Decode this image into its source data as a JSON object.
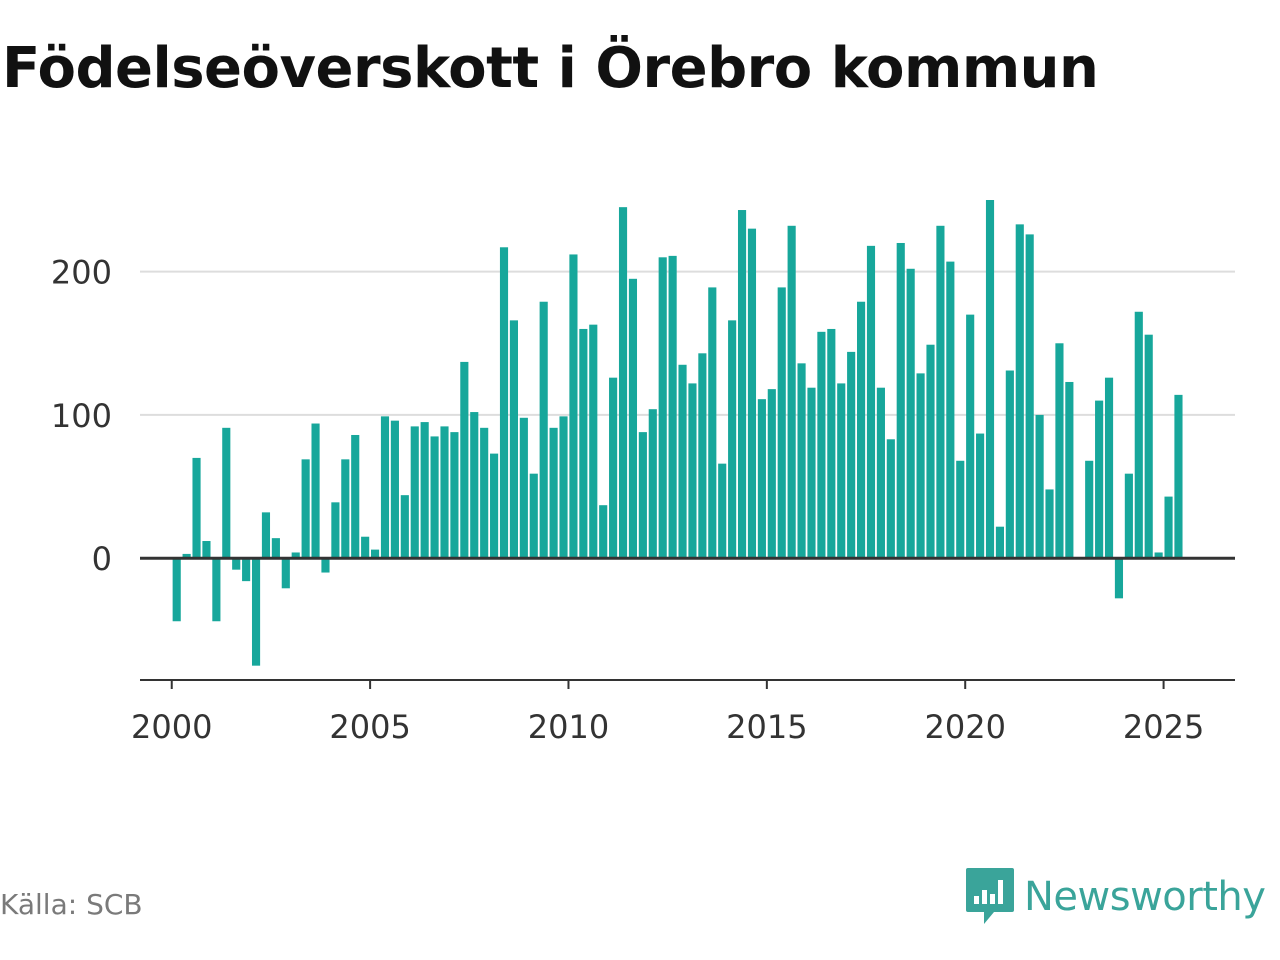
{
  "title": "Födelseöverskott i Örebro kommun",
  "source": "Källa: SCB",
  "brand": "Newsworthy",
  "colors": {
    "bar": "#17a79b",
    "brand": "#3aa49a",
    "grid": "#dddddd",
    "axis": "#333333"
  },
  "chart_data": {
    "type": "bar",
    "xlabel": "",
    "ylabel": "",
    "ylim": [
      -85,
      250
    ],
    "xlim": [
      1999.2,
      2026.8
    ],
    "yticks": [
      0,
      100,
      200
    ],
    "xticks": [
      2000,
      2005,
      2010,
      2015,
      2020,
      2025
    ],
    "grid": true,
    "points": [
      {
        "x": "2000 Q1",
        "y": -44
      },
      {
        "x": "2000 Q2",
        "y": 3
      },
      {
        "x": "2000 Q3",
        "y": 70
      },
      {
        "x": "2000 Q4",
        "y": 12
      },
      {
        "x": "2001 Q1",
        "y": -44
      },
      {
        "x": "2001 Q2",
        "y": 91
      },
      {
        "x": "2001 Q3",
        "y": -8
      },
      {
        "x": "2001 Q4",
        "y": -16
      },
      {
        "x": "2002 Q1",
        "y": -75
      },
      {
        "x": "2002 Q2",
        "y": 32
      },
      {
        "x": "2002 Q3",
        "y": 14
      },
      {
        "x": "2002 Q4",
        "y": -21
      },
      {
        "x": "2003 Q1",
        "y": 4
      },
      {
        "x": "2003 Q2",
        "y": 69
      },
      {
        "x": "2003 Q3",
        "y": 94
      },
      {
        "x": "2003 Q4",
        "y": -10
      },
      {
        "x": "2004 Q1",
        "y": 39
      },
      {
        "x": "2004 Q2",
        "y": 69
      },
      {
        "x": "2004 Q3",
        "y": 86
      },
      {
        "x": "2004 Q4",
        "y": 15
      },
      {
        "x": "2005 Q1",
        "y": 6
      },
      {
        "x": "2005 Q2",
        "y": 99
      },
      {
        "x": "2005 Q3",
        "y": 96
      },
      {
        "x": "2005 Q4",
        "y": 44
      },
      {
        "x": "2006 Q1",
        "y": 92
      },
      {
        "x": "2006 Q2",
        "y": 95
      },
      {
        "x": "2006 Q3",
        "y": 85
      },
      {
        "x": "2006 Q4",
        "y": 92
      },
      {
        "x": "2007 Q1",
        "y": 88
      },
      {
        "x": "2007 Q2",
        "y": 137
      },
      {
        "x": "2007 Q3",
        "y": 102
      },
      {
        "x": "2007 Q4",
        "y": 91
      },
      {
        "x": "2008 Q1",
        "y": 73
      },
      {
        "x": "2008 Q2",
        "y": 217
      },
      {
        "x": "2008 Q3",
        "y": 166
      },
      {
        "x": "2008 Q4",
        "y": 98
      },
      {
        "x": "2009 Q1",
        "y": 59
      },
      {
        "x": "2009 Q2",
        "y": 179
      },
      {
        "x": "2009 Q3",
        "y": 91
      },
      {
        "x": "2009 Q4",
        "y": 99
      },
      {
        "x": "2010 Q1",
        "y": 212
      },
      {
        "x": "2010 Q2",
        "y": 160
      },
      {
        "x": "2010 Q3",
        "y": 163
      },
      {
        "x": "2010 Q4",
        "y": 37
      },
      {
        "x": "2011 Q1",
        "y": 126
      },
      {
        "x": "2011 Q2",
        "y": 245
      },
      {
        "x": "2011 Q3",
        "y": 195
      },
      {
        "x": "2011 Q4",
        "y": 88
      },
      {
        "x": "2012 Q1",
        "y": 104
      },
      {
        "x": "2012 Q2",
        "y": 210
      },
      {
        "x": "2012 Q3",
        "y": 211
      },
      {
        "x": "2012 Q4",
        "y": 135
      },
      {
        "x": "2013 Q1",
        "y": 122
      },
      {
        "x": "2013 Q2",
        "y": 143
      },
      {
        "x": "2013 Q3",
        "y": 189
      },
      {
        "x": "2013 Q4",
        "y": 66
      },
      {
        "x": "2014 Q1",
        "y": 166
      },
      {
        "x": "2014 Q2",
        "y": 243
      },
      {
        "x": "2014 Q3",
        "y": 230
      },
      {
        "x": "2014 Q4",
        "y": 111
      },
      {
        "x": "2015 Q1",
        "y": 118
      },
      {
        "x": "2015 Q2",
        "y": 189
      },
      {
        "x": "2015 Q3",
        "y": 232
      },
      {
        "x": "2015 Q4",
        "y": 136
      },
      {
        "x": "2016 Q1",
        "y": 119
      },
      {
        "x": "2016 Q2",
        "y": 158
      },
      {
        "x": "2016 Q3",
        "y": 160
      },
      {
        "x": "2016 Q4",
        "y": 122
      },
      {
        "x": "2017 Q1",
        "y": 144
      },
      {
        "x": "2017 Q2",
        "y": 179
      },
      {
        "x": "2017 Q3",
        "y": 218
      },
      {
        "x": "2017 Q4",
        "y": 119
      },
      {
        "x": "2018 Q1",
        "y": 83
      },
      {
        "x": "2018 Q2",
        "y": 220
      },
      {
        "x": "2018 Q3",
        "y": 202
      },
      {
        "x": "2018 Q4",
        "y": 129
      },
      {
        "x": "2019 Q1",
        "y": 149
      },
      {
        "x": "2019 Q2",
        "y": 232
      },
      {
        "x": "2019 Q3",
        "y": 207
      },
      {
        "x": "2019 Q4",
        "y": 68
      },
      {
        "x": "2020 Q1",
        "y": 170
      },
      {
        "x": "2020 Q2",
        "y": 87
      },
      {
        "x": "2020 Q3",
        "y": 250
      },
      {
        "x": "2020 Q4",
        "y": 22
      },
      {
        "x": "2021 Q1",
        "y": 131
      },
      {
        "x": "2021 Q2",
        "y": 233
      },
      {
        "x": "2021 Q3",
        "y": 226
      },
      {
        "x": "2021 Q4",
        "y": 100
      },
      {
        "x": "2022 Q1",
        "y": 48
      },
      {
        "x": "2022 Q2",
        "y": 150
      },
      {
        "x": "2022 Q3",
        "y": 123
      },
      {
        "x": "2022 Q4",
        "y": 0
      },
      {
        "x": "2023 Q1",
        "y": 68
      },
      {
        "x": "2023 Q2",
        "y": 110
      },
      {
        "x": "2023 Q3",
        "y": 126
      },
      {
        "x": "2023 Q4",
        "y": -28
      },
      {
        "x": "2024 Q1",
        "y": 59
      },
      {
        "x": "2024 Q2",
        "y": 172
      },
      {
        "x": "2024 Q3",
        "y": 156
      },
      {
        "x": "2024 Q4",
        "y": 4
      },
      {
        "x": "2025 Q1",
        "y": 43
      },
      {
        "x": "2025 Q2",
        "y": 114
      }
    ]
  }
}
